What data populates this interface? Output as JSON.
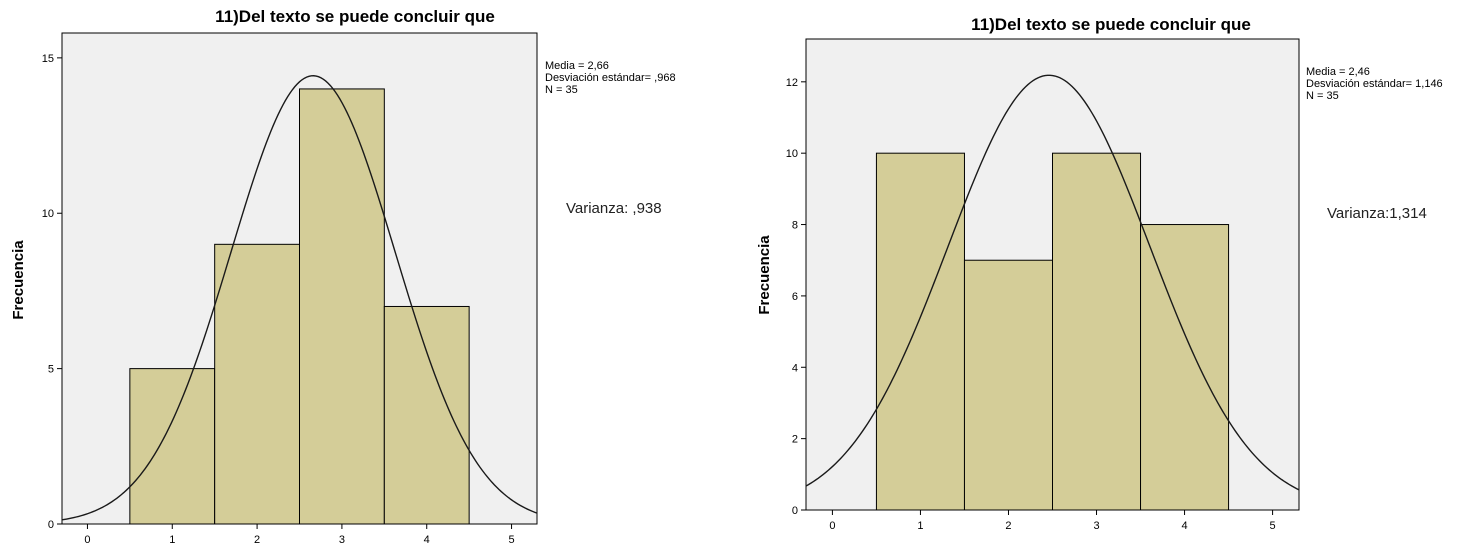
{
  "chart_data": [
    {
      "type": "bar",
      "title": "11)Del texto se puede concluir que",
      "ylabel": "Frecuencia",
      "xlabel": "",
      "categories": [
        1,
        2,
        3,
        4
      ],
      "values": [
        5,
        9,
        14,
        7
      ],
      "xlim": [
        -0.3,
        5.3
      ],
      "ylim": [
        0,
        15.8
      ],
      "xticks": [
        0,
        1,
        2,
        3,
        4,
        5
      ],
      "yticks": [
        0,
        5,
        10,
        15
      ],
      "normal_curve": {
        "mean": 2.66,
        "sd": 0.968,
        "n": 35
      },
      "stats": [
        "Media = 2,66",
        "Desviación estándar= ,968",
        "N = 35"
      ],
      "note": "Varianza: ,938",
      "colors": {
        "bar": "#d4cd98",
        "plot_bg": "#f0f0f0",
        "stroke": "#000000"
      }
    },
    {
      "type": "bar",
      "title": "11)Del texto se puede concluir que",
      "ylabel": "Frecuencia",
      "xlabel": "",
      "categories": [
        1,
        2,
        3,
        4
      ],
      "values": [
        10,
        7,
        10,
        8
      ],
      "xlim": [
        -0.3,
        5.3
      ],
      "ylim": [
        0,
        13.2
      ],
      "xticks": [
        0,
        1,
        2,
        3,
        4,
        5
      ],
      "yticks": [
        0,
        2,
        4,
        6,
        8,
        10,
        12
      ],
      "normal_curve": {
        "mean": 2.46,
        "sd": 1.146,
        "n": 35
      },
      "stats": [
        "Media = 2,46",
        "Desviación estándar= 1,146",
        "N = 35"
      ],
      "note": "Varianza:1,314",
      "colors": {
        "bar": "#d4cd98",
        "plot_bg": "#f0f0f0",
        "stroke": "#000000"
      }
    }
  ]
}
